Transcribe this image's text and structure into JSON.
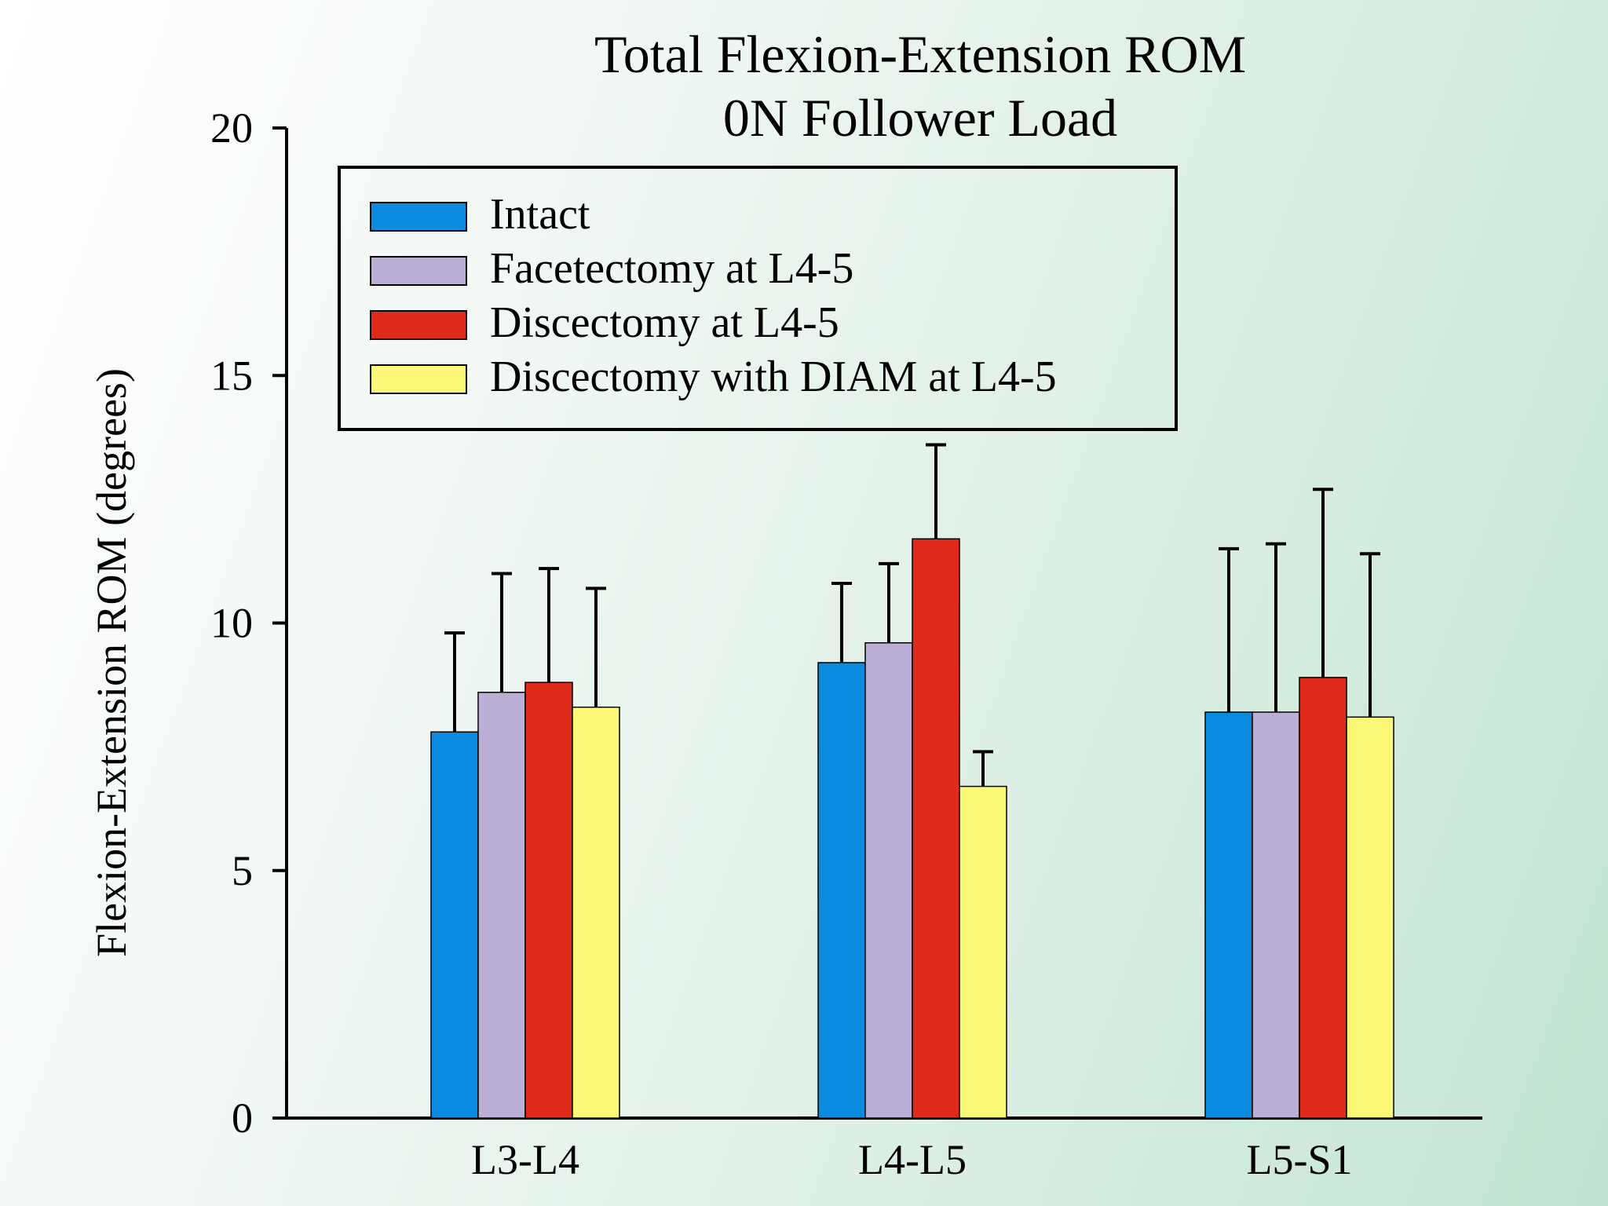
{
  "chart_data": {
    "type": "bar",
    "title": "Total Flexion-Extension ROM",
    "subtitle": "0N Follower Load",
    "xlabel": "",
    "ylabel": "Flexion-Extension ROM (degrees)",
    "ylim": [
      0,
      20
    ],
    "yticks": [
      "0",
      "5",
      "10",
      "15",
      "20"
    ],
    "categories": [
      "L3-L4",
      "L4-L5",
      "L5-S1"
    ],
    "legend_position": "top-left",
    "grid": false,
    "series": [
      {
        "name": "Intact",
        "color": "#0a8be0",
        "values": [
          7.8,
          9.2,
          8.2
        ],
        "error": [
          2.0,
          1.6,
          3.3
        ]
      },
      {
        "name": "Facetectomy at L4-5",
        "color": "#bcafd6",
        "values": [
          8.6,
          9.6,
          8.2
        ],
        "error": [
          2.4,
          1.6,
          3.4
        ]
      },
      {
        "name": "Discectomy at L4-5",
        "color": "#e02a1c",
        "values": [
          8.8,
          11.7,
          8.9
        ],
        "error": [
          2.3,
          1.9,
          3.8
        ]
      },
      {
        "name": "Discectomy with DIAM at L4-5",
        "color": "#fdf978",
        "values": [
          8.3,
          6.7,
          8.1
        ],
        "error": [
          2.4,
          0.7,
          3.3
        ]
      }
    ]
  }
}
